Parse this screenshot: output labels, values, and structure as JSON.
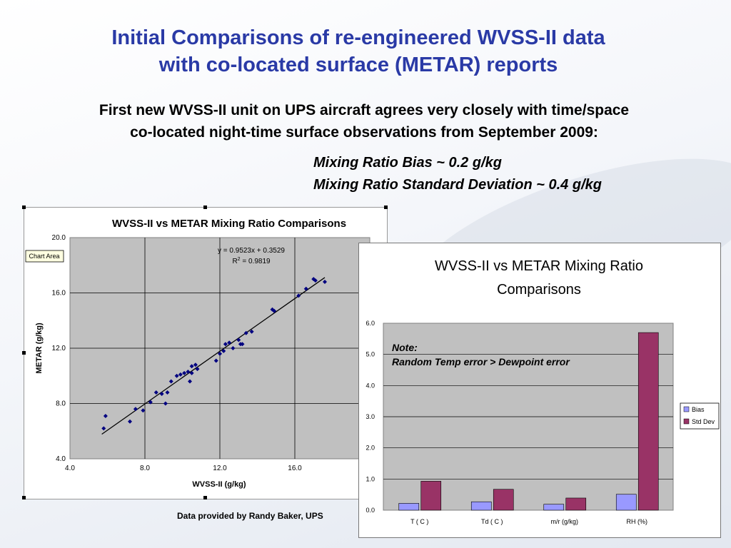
{
  "slide": {
    "title_line1": "Initial Comparisons of re-engineered WVSS-II data",
    "title_line2": "with co-located surface (METAR) reports",
    "subtitle_line1": "First new WVSS-II unit on UPS aircraft agrees very closely with time/space",
    "subtitle_line2": "co-located night-time surface observations from September 2009:",
    "stat_bias": "Mixing Ratio Bias ~ 0.2 g/kg",
    "stat_sd": "Mixing Ratio Standard Deviation ~ 0.4 g/kg",
    "credit": "Data provided by Randy Baker, UPS"
  },
  "chart_data": [
    {
      "type": "scatter",
      "title": "WVSS-II vs METAR Mixing Ratio Comparisons",
      "xlabel": "WVSS-II (g/kg)",
      "ylabel": "METAR (g/kg)",
      "xlim": [
        4.0,
        20.0
      ],
      "ylim": [
        4.0,
        20.0
      ],
      "xticks": [
        "4.0",
        "8.0",
        "12.0",
        "16.0"
      ],
      "yticks": [
        "4.0",
        "8.0",
        "12.0",
        "16.0",
        "20.0"
      ],
      "grid": true,
      "tooltip": "Chart Area",
      "equation": "y = 0.9523x + 0.3529",
      "r2_prefix": "R",
      "r2_sup": "2",
      "r2_suffix": " = 0.9819",
      "trendline": {
        "slope": 0.9523,
        "intercept": 0.3529,
        "x_range": [
          5.7,
          17.6
        ]
      },
      "points": [
        [
          5.8,
          6.2
        ],
        [
          5.9,
          7.1
        ],
        [
          7.2,
          6.7
        ],
        [
          7.5,
          7.6
        ],
        [
          7.9,
          7.5
        ],
        [
          8.3,
          8.1
        ],
        [
          8.6,
          8.8
        ],
        [
          8.9,
          8.7
        ],
        [
          9.1,
          8.0
        ],
        [
          9.2,
          8.8
        ],
        [
          9.4,
          9.6
        ],
        [
          9.7,
          10.0
        ],
        [
          9.9,
          10.1
        ],
        [
          10.1,
          10.2
        ],
        [
          10.3,
          10.3
        ],
        [
          10.4,
          9.6
        ],
        [
          10.5,
          10.2
        ],
        [
          10.5,
          10.7
        ],
        [
          10.7,
          10.8
        ],
        [
          10.8,
          10.5
        ],
        [
          11.8,
          11.1
        ],
        [
          12.0,
          11.6
        ],
        [
          12.2,
          11.8
        ],
        [
          12.3,
          12.3
        ],
        [
          12.5,
          12.4
        ],
        [
          12.7,
          12.0
        ],
        [
          13.0,
          12.6
        ],
        [
          13.1,
          12.3
        ],
        [
          13.2,
          12.3
        ],
        [
          13.4,
          13.1
        ],
        [
          13.7,
          13.2
        ],
        [
          14.8,
          14.8
        ],
        [
          14.9,
          14.7
        ],
        [
          16.2,
          15.8
        ],
        [
          16.6,
          16.3
        ],
        [
          17.0,
          17.0
        ],
        [
          17.1,
          16.9
        ],
        [
          17.6,
          16.8
        ]
      ]
    },
    {
      "type": "bar",
      "title_line1": "WVSS-II vs METAR Mixing Ratio",
      "title_line2": "Comparisons",
      "categories": [
        "T ( C )",
        "Td ( C )",
        "m/r (g/kg)",
        "RH (%)"
      ],
      "ylim": [
        0,
        6.0
      ],
      "yticks": [
        "0.0",
        "1.0",
        "2.0",
        "3.0",
        "4.0",
        "5.0",
        "6.0"
      ],
      "grid": true,
      "legend_position": "right",
      "note_line1": "Note:",
      "note_line2": "Random Temp error > Dewpoint error",
      "series": [
        {
          "name": "Bias",
          "color": "#9999ff",
          "values": [
            0.22,
            0.27,
            0.19,
            0.51
          ]
        },
        {
          "name": "Std Dev",
          "color": "#993366",
          "values": [
            0.93,
            0.67,
            0.39,
            5.7
          ]
        }
      ]
    }
  ]
}
